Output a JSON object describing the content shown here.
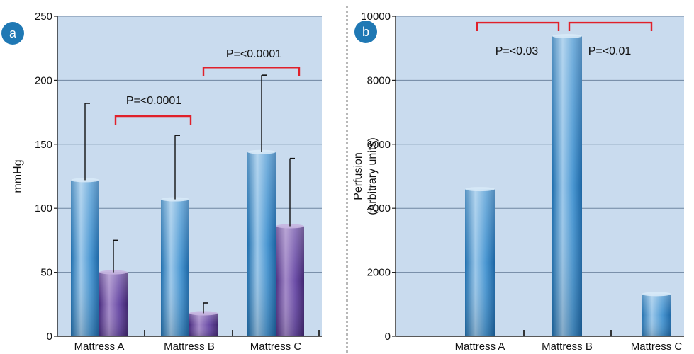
{
  "chart_data": [
    {
      "panel": "a",
      "type": "bar",
      "title": "",
      "xlabel": "",
      "ylabel": "mmHg",
      "ylim": [
        0,
        250
      ],
      "yticks": [
        0,
        50,
        100,
        150,
        200,
        250
      ],
      "grid": true,
      "categories": [
        "Mattress A",
        "Mattress B",
        "Mattress C"
      ],
      "series": [
        {
          "values": [
            122,
            107,
            144
          ],
          "errors": [
            60,
            50,
            60
          ],
          "color": "#3a8cc8"
        },
        {
          "values": [
            50,
            18,
            86
          ],
          "errors": [
            25,
            8,
            53
          ],
          "color": "#5a3a8e"
        }
      ],
      "annotations": [
        {
          "text": "P=<0.0001",
          "from": 0,
          "to": 1,
          "y": 172
        },
        {
          "text": "P=<0.0001",
          "from": 1,
          "to": 2,
          "y": 210
        }
      ]
    },
    {
      "panel": "b",
      "type": "bar",
      "title": "",
      "xlabel": "",
      "ylabel": [
        "Perfusion",
        "(Arbitrary units)"
      ],
      "ylim": [
        0,
        10000
      ],
      "yticks": [
        0,
        2000,
        4000,
        6000,
        8000,
        10000
      ],
      "grid": true,
      "categories": [
        "Mattress A",
        "Mattress B",
        "Mattress C"
      ],
      "series": [
        {
          "values": [
            4600,
            9380,
            1320
          ],
          "color": "#3a8cc8"
        }
      ],
      "annotations": [
        {
          "text": "P=<0.03",
          "from": 0,
          "to": 1,
          "y": 9800
        },
        {
          "text": "P=<0.01",
          "from": 1,
          "to": 2,
          "y": 9800
        }
      ]
    }
  ]
}
